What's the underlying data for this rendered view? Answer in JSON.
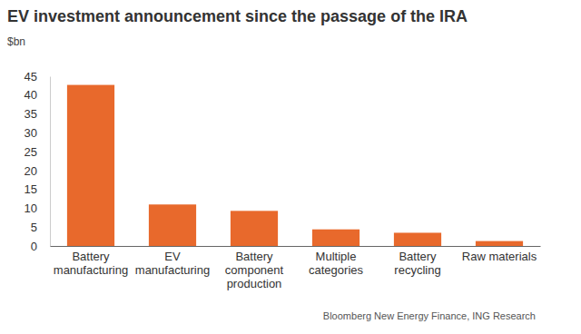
{
  "chart_data": {
    "type": "bar",
    "title": "EV investment announcement since the passage of the IRA",
    "subtitle": "$bn",
    "categories": [
      "Battery manufacturing",
      "EV manufacturing",
      "Battery component production",
      "Multiple categories",
      "Battery recycling",
      "Raw materials"
    ],
    "values": [
      42.7,
      11,
      9.3,
      4.4,
      3.5,
      1.3
    ],
    "color": "#e8692c",
    "ylim": [
      0,
      45
    ],
    "yticks": [
      0,
      5,
      10,
      15,
      20,
      25,
      30,
      35,
      40,
      45
    ],
    "grid": false,
    "source": "Bloomberg New Energy Finance, ING Research"
  }
}
